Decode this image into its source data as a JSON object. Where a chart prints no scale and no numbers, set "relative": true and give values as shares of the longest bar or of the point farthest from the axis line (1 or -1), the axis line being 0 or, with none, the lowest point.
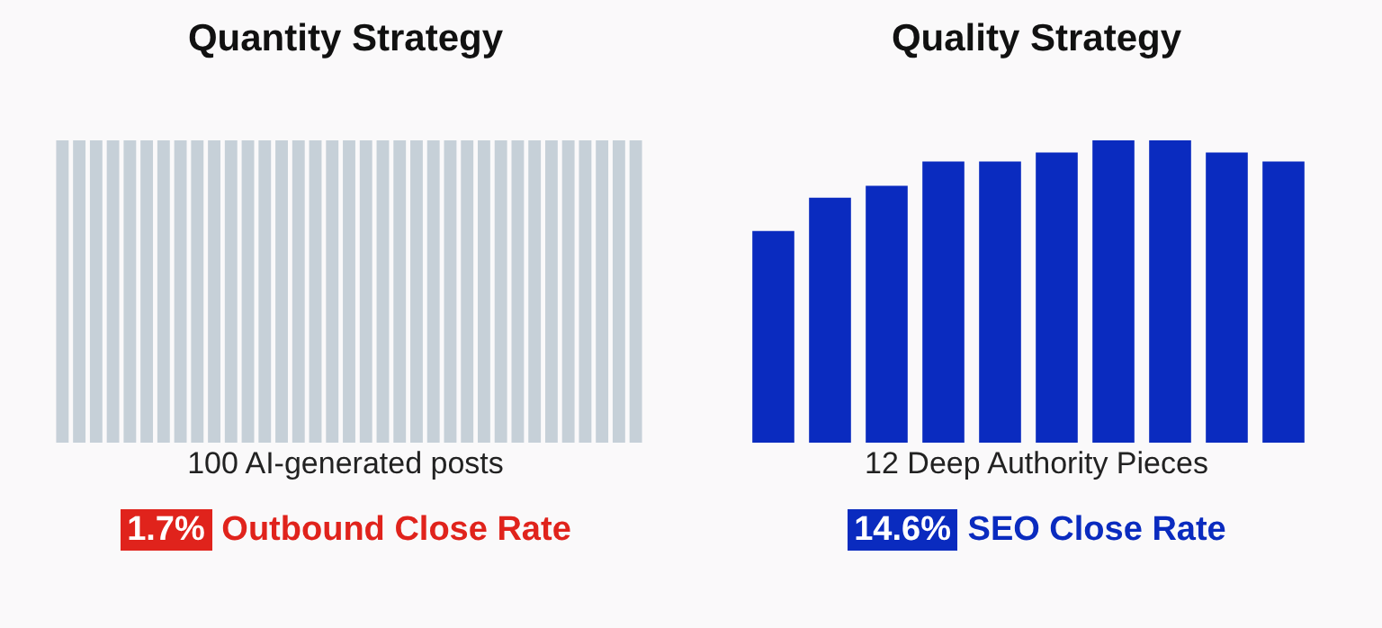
{
  "chart_data": [
    {
      "type": "bar",
      "title": "Quantity Strategy",
      "xlabel": "100 AI-generated posts",
      "relative": true,
      "legend": false,
      "categories": [
        null,
        null,
        null,
        null,
        null,
        null,
        null,
        null,
        null,
        null,
        null,
        null,
        null,
        null,
        null,
        null,
        null,
        null,
        null,
        null,
        null,
        null,
        null,
        null,
        null,
        null,
        null,
        null,
        null,
        null,
        null,
        null,
        null,
        null,
        null
      ],
      "values": [
        1,
        1,
        1,
        1,
        1,
        1,
        1,
        1,
        1,
        1,
        1,
        1,
        1,
        1,
        1,
        1,
        1,
        1,
        1,
        1,
        1,
        1,
        1,
        1,
        1,
        1,
        1,
        1,
        1,
        1,
        1,
        1,
        1,
        1,
        1
      ],
      "color": "#c6d0d8",
      "annotations": [
        "1.7%",
        "Outbound Close Rate"
      ]
    },
    {
      "type": "bar",
      "title": "Quality Strategy",
      "xlabel": "12 Deep Authority Pieces",
      "relative": true,
      "legend": false,
      "categories": [
        null,
        null,
        null,
        null,
        null,
        null,
        null,
        null,
        null,
        null
      ],
      "values": [
        0.7,
        0.81,
        0.85,
        0.93,
        0.93,
        0.96,
        1,
        1,
        0.96,
        0.93
      ],
      "color": "#0a2bbf",
      "annotations": [
        "14.6%",
        "SEO Close Rate"
      ]
    }
  ]
}
